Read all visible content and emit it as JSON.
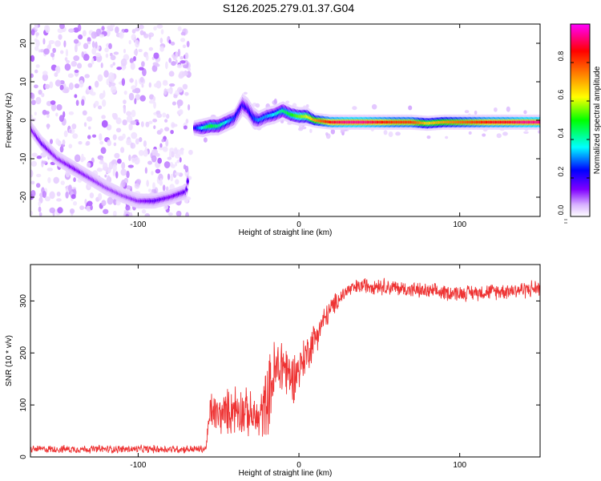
{
  "title": "S126.2025.279.01.37.G04",
  "chart_data": [
    {
      "type": "heatmap",
      "title": "",
      "xlabel": "Height of straight line (km)",
      "ylabel": "Frequency (Hz)",
      "xlim": [
        -167,
        150
      ],
      "ylim": [
        -25,
        25
      ],
      "xticks": [
        -100,
        0,
        100
      ],
      "yticks": [
        -20,
        -10,
        0,
        10,
        20
      ],
      "colorbar": {
        "label": "Normalized spectral amplitude",
        "range": [
          0,
          1
        ],
        "ticks": [
          0.0,
          0.2,
          0.4,
          0.6,
          0.8
        ],
        "tick_labels": [
          "0.0",
          "0.2",
          "0.4",
          "0.6",
          "0.8"
        ],
        "colormap": [
          "#ffffff",
          "#d9b3ff",
          "#8000ff",
          "#0000ff",
          "#00ffff",
          "#00ff00",
          "#ffff00",
          "#ff8000",
          "#ff0000",
          "#ff00ff"
        ]
      },
      "ridge": {
        "x": [
          -167,
          -160,
          -150,
          -140,
          -130,
          -120,
          -110,
          -100,
          -90,
          -80,
          -70,
          -65,
          -60,
          -55,
          -50,
          -45,
          -40,
          -35,
          -32,
          -28,
          -25,
          -20,
          -15,
          -10,
          -5,
          0,
          5,
          10,
          20,
          30,
          40,
          50,
          60,
          70,
          80,
          90,
          100,
          110,
          120,
          130,
          140,
          150
        ],
        "y": [
          -2,
          -6,
          -10,
          -12.5,
          -15,
          -17.5,
          -19.5,
          -21,
          -21,
          -20,
          -18.5,
          -2,
          -2,
          -1.5,
          -1.5,
          -0.5,
          0.5,
          4,
          3,
          0.5,
          0,
          1,
          1.5,
          2.5,
          1.5,
          1,
          1,
          0,
          -0.5,
          -0.5,
          -0.5,
          -0.5,
          -0.5,
          -0.5,
          -0.8,
          -0.5,
          -0.5,
          -0.5,
          -0.5,
          -0.5,
          -0.5,
          -0.5
        ],
        "amp": [
          0.2,
          0.25,
          0.2,
          0.22,
          0.2,
          0.18,
          0.18,
          0.2,
          0.25,
          0.22,
          0.25,
          0.3,
          0.45,
          0.55,
          0.5,
          0.45,
          0.35,
          0.3,
          0.3,
          0.35,
          0.4,
          0.4,
          0.45,
          0.5,
          0.55,
          0.6,
          0.65,
          0.75,
          0.9,
          0.95,
          0.95,
          0.9,
          0.85,
          0.85,
          0.7,
          0.75,
          0.8,
          0.85,
          0.9,
          0.9,
          0.95,
          0.95
        ],
        "width": [
          2,
          2,
          2,
          2,
          2,
          2,
          2,
          2,
          2,
          2,
          2,
          2,
          2.5,
          2.5,
          2.5,
          2.5,
          2.5,
          3,
          3,
          3,
          2.5,
          2.5,
          2.5,
          2.5,
          2.5,
          2.5,
          2.5,
          2,
          2,
          2,
          2,
          2,
          2,
          2,
          2,
          2,
          2,
          2,
          2,
          2,
          2,
          2
        ]
      },
      "noise": {
        "x_range": [
          -167,
          -68
        ],
        "y_range": [
          -25,
          25
        ],
        "amp_range": [
          0.04,
          0.18
        ]
      }
    },
    {
      "type": "line",
      "title": "",
      "xlabel": "Height of straight line (km)",
      "ylabel": "SNR (10 * v/v)",
      "xlim": [
        -167,
        150
      ],
      "ylim": [
        0,
        370
      ],
      "xticks": [
        -100,
        0,
        100
      ],
      "yticks": [
        0,
        100,
        200,
        300
      ],
      "color": "#ee3333",
      "envelope": {
        "x": [
          -167,
          -140,
          -100,
          -70,
          -58,
          -55,
          -50,
          -45,
          -40,
          -35,
          -30,
          -25,
          -20,
          -15,
          -10,
          -5,
          0,
          5,
          10,
          15,
          20,
          25,
          30,
          40,
          50,
          60,
          80,
          100,
          120,
          140,
          150
        ],
        "y": [
          15,
          15,
          15,
          15,
          15,
          90,
          80,
          85,
          95,
          90,
          80,
          70,
          110,
          160,
          180,
          150,
          170,
          200,
          230,
          260,
          285,
          305,
          320,
          330,
          330,
          325,
          318,
          315,
          318,
          322,
          325
        ],
        "amp": [
          8,
          9,
          9,
          9,
          9,
          45,
          45,
          50,
          60,
          55,
          50,
          50,
          80,
          85,
          75,
          60,
          50,
          45,
          40,
          30,
          25,
          20,
          18,
          18,
          20,
          18,
          18,
          18,
          18,
          20,
          20
        ]
      }
    }
  ]
}
